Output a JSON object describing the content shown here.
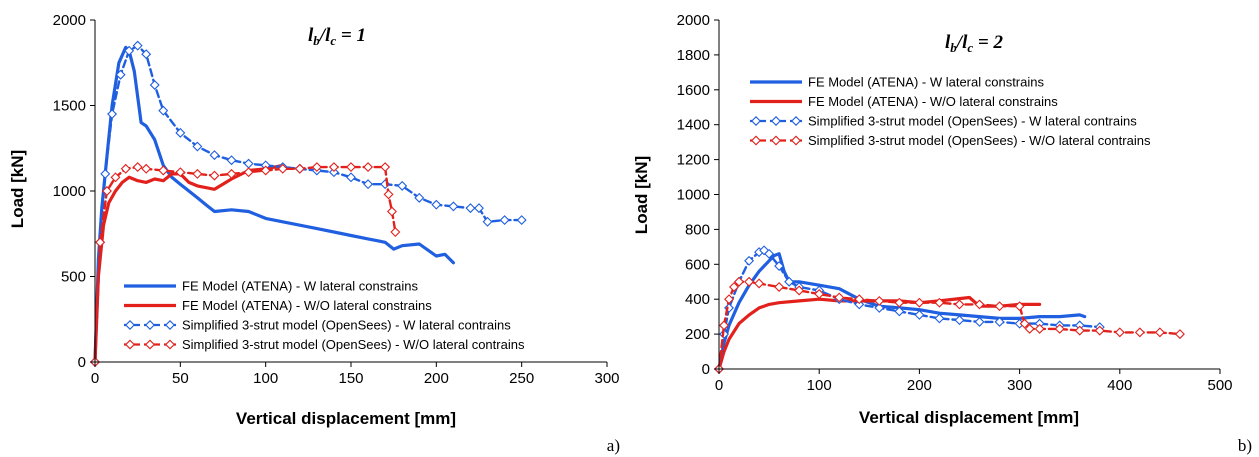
{
  "legend_labels": [
    "FE Model (ATENA) - W lateral constrains",
    "FE Model (ATENA) - W/O lateral constrains",
    "Simplified 3-strut model (OpenSees) - W lateral contrains",
    "Simplified 3-strut model (OpenSees) - W/O lateral contrains"
  ],
  "colors": {
    "blue": "#1f5fe0",
    "red": "#e3211c"
  },
  "chart_data": [
    {
      "type": "line",
      "panel_label": "a)",
      "ratio": {
        "l": "l",
        "b": "b",
        "slash": "/",
        "c": "c",
        "value": " = 1"
      },
      "xlabel": "Vertical displacement [mm]",
      "ylabel": "Load [kN]",
      "xlim": [
        0,
        300
      ],
      "ylim": [
        0,
        2000
      ],
      "xticks": [
        0,
        50,
        100,
        150,
        200,
        250,
        300
      ],
      "yticks": [
        0,
        500,
        1000,
        1500,
        2000
      ],
      "grid": false,
      "legend_position": "bottom-left",
      "series": [
        {
          "name": "FE Model (ATENA) - W lateral constrains",
          "style": "solid",
          "color": "blue",
          "marker": "none",
          "x": [
            0,
            2,
            4,
            7,
            10,
            14,
            18,
            20,
            23,
            27,
            30,
            35,
            40,
            45,
            50,
            55,
            60,
            65,
            70,
            80,
            90,
            100,
            110,
            120,
            130,
            140,
            150,
            160,
            170,
            175,
            180,
            190,
            200,
            205,
            210
          ],
          "y": [
            0,
            600,
            900,
            1200,
            1500,
            1750,
            1840,
            1820,
            1700,
            1400,
            1380,
            1300,
            1150,
            1080,
            1040,
            1000,
            960,
            920,
            880,
            890,
            880,
            840,
            820,
            800,
            780,
            760,
            740,
            720,
            700,
            660,
            680,
            690,
            620,
            630,
            580
          ]
        },
        {
          "name": "FE Model (ATENA) - W/O lateral constrains",
          "style": "solid",
          "color": "red",
          "marker": "none",
          "x": [
            0,
            2,
            5,
            8,
            12,
            16,
            20,
            25,
            30,
            35,
            40,
            45,
            50,
            55,
            60,
            70,
            80,
            90,
            100,
            110
          ],
          "y": [
            0,
            500,
            800,
            930,
            1000,
            1050,
            1080,
            1060,
            1050,
            1070,
            1060,
            1100,
            1100,
            1050,
            1030,
            1010,
            1070,
            1120,
            1130,
            1150
          ]
        },
        {
          "name": "Simplified 3-strut model (OpenSees) - W lateral contrains",
          "style": "dashed",
          "color": "blue",
          "marker": "diamond",
          "x": [
            0,
            3,
            6,
            10,
            15,
            20,
            25,
            30,
            35,
            40,
            50,
            60,
            70,
            80,
            90,
            100,
            110,
            120,
            130,
            140,
            150,
            160,
            170,
            180,
            190,
            200,
            210,
            220,
            225,
            230,
            240,
            250
          ],
          "y": [
            0,
            700,
            1100,
            1450,
            1680,
            1820,
            1850,
            1800,
            1620,
            1470,
            1340,
            1260,
            1210,
            1180,
            1160,
            1150,
            1140,
            1130,
            1120,
            1110,
            1080,
            1040,
            1040,
            1030,
            960,
            920,
            910,
            900,
            900,
            820,
            830,
            830
          ]
        },
        {
          "name": "Simplified 3-strut model (OpenSees) - W/O lateral contrains",
          "style": "dashed",
          "color": "red",
          "marker": "diamond",
          "x": [
            0,
            3,
            7,
            12,
            18,
            25,
            30,
            40,
            50,
            60,
            70,
            80,
            90,
            100,
            110,
            120,
            130,
            140,
            150,
            160,
            170,
            172,
            174,
            176
          ],
          "y": [
            0,
            700,
            1000,
            1080,
            1130,
            1140,
            1130,
            1120,
            1110,
            1100,
            1090,
            1100,
            1110,
            1120,
            1130,
            1130,
            1140,
            1140,
            1140,
            1140,
            1140,
            980,
            880,
            760
          ]
        }
      ]
    },
    {
      "type": "line",
      "panel_label": "b)",
      "ratio": {
        "l": "l",
        "b": "b",
        "slash": "/",
        "c": "c",
        "value": " = 2"
      },
      "xlabel": "Vertical displacement [mm]",
      "ylabel": "Load [kN]",
      "xlim": [
        0,
        500
      ],
      "ylim": [
        0,
        2000
      ],
      "xticks": [
        0,
        100,
        200,
        300,
        400,
        500
      ],
      "yticks": [
        0,
        200,
        400,
        600,
        800,
        1000,
        1200,
        1400,
        1600,
        1800,
        2000
      ],
      "grid": false,
      "legend_position": "top-left",
      "series": [
        {
          "name": "FE Model (ATENA) - W lateral constrains",
          "style": "solid",
          "color": "blue",
          "marker": "none",
          "x": [
            0,
            5,
            10,
            20,
            30,
            40,
            50,
            55,
            60,
            65,
            70,
            80,
            100,
            120,
            140,
            160,
            180,
            200,
            220,
            240,
            260,
            280,
            300,
            320,
            340,
            360,
            365
          ],
          "y": [
            0,
            150,
            250,
            380,
            480,
            560,
            620,
            650,
            660,
            560,
            500,
            500,
            480,
            460,
            400,
            360,
            350,
            340,
            320,
            310,
            300,
            290,
            290,
            300,
            300,
            310,
            300
          ]
        },
        {
          "name": "FE Model (ATENA) - W/O lateral constrains",
          "style": "solid",
          "color": "red",
          "marker": "none",
          "x": [
            0,
            5,
            10,
            20,
            30,
            40,
            50,
            60,
            80,
            100,
            120,
            150,
            180,
            200,
            220,
            250,
            260,
            280,
            300,
            320
          ],
          "y": [
            0,
            100,
            170,
            260,
            310,
            350,
            370,
            380,
            390,
            400,
            390,
            390,
            390,
            380,
            390,
            410,
            360,
            360,
            370,
            370
          ]
        },
        {
          "name": "Simplified 3-strut model (OpenSees) - W lateral contrains",
          "style": "dashed",
          "color": "blue",
          "marker": "diamond",
          "x": [
            0,
            5,
            10,
            20,
            30,
            40,
            45,
            50,
            60,
            70,
            80,
            100,
            120,
            140,
            160,
            180,
            200,
            220,
            240,
            260,
            280,
            300,
            320,
            340,
            360,
            380
          ],
          "y": [
            0,
            200,
            350,
            500,
            620,
            670,
            680,
            660,
            590,
            500,
            470,
            450,
            400,
            370,
            350,
            330,
            310,
            290,
            280,
            270,
            270,
            260,
            260,
            250,
            250,
            240
          ]
        },
        {
          "name": "Simplified 3-strut model (OpenSees) - W/O lateral contrains",
          "style": "dashed",
          "color": "red",
          "marker": "diamond",
          "x": [
            0,
            5,
            10,
            15,
            20,
            30,
            40,
            60,
            80,
            100,
            120,
            140,
            160,
            180,
            200,
            220,
            240,
            260,
            280,
            300,
            305,
            310,
            320,
            340,
            360,
            380,
            400,
            420,
            440,
            460
          ],
          "y": [
            0,
            250,
            400,
            470,
            500,
            500,
            490,
            470,
            450,
            430,
            410,
            400,
            390,
            380,
            380,
            380,
            370,
            370,
            360,
            360,
            260,
            230,
            230,
            230,
            220,
            220,
            210,
            210,
            210,
            200
          ]
        }
      ]
    }
  ]
}
